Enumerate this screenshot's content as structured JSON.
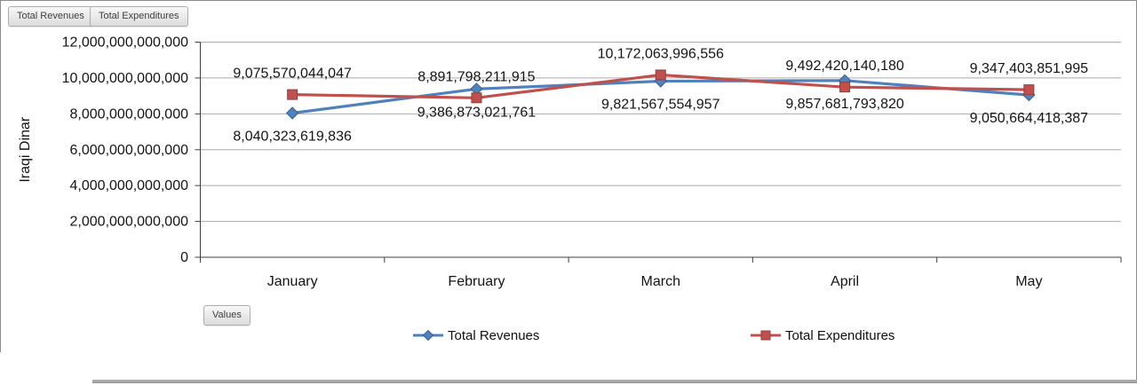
{
  "field_buttons": [
    {
      "label": "Total Revenues"
    },
    {
      "label": "Total Expenditures"
    }
  ],
  "values_button": {
    "label": "Values"
  },
  "chart_data": {
    "type": "line",
    "title": "",
    "xlabel": "",
    "ylabel": "Iraqi Dinar",
    "categories": [
      "January",
      "February",
      "March",
      "April",
      "May"
    ],
    "y_axis": {
      "min": 0,
      "max": 12000000000000,
      "step": 2000000000000,
      "ticks": [
        {
          "value": 0,
          "label": "0"
        },
        {
          "value": 2000000000000,
          "label": "2,000,000,000,000"
        },
        {
          "value": 4000000000000,
          "label": "4,000,000,000,000"
        },
        {
          "value": 6000000000000,
          "label": "6,000,000,000,000"
        },
        {
          "value": 8000000000000,
          "label": "8,000,000,000,000"
        },
        {
          "value": 10000000000000,
          "label": "10,000,000,000,000"
        },
        {
          "value": 12000000000000,
          "label": "12,000,000,000,000"
        }
      ]
    },
    "grid": true,
    "legend_position": "bottom",
    "gridline_color": "#ababab",
    "axis_color": "#404040",
    "label_color": "#141414",
    "series": [
      {
        "name": "Total Revenues",
        "color": "#4F81BD",
        "marker": "diamond",
        "marker_border": "#36618f",
        "label_position": "below",
        "values": [
          8040323619836,
          9386873021761,
          9821567554957,
          9857681793820,
          9050664418387
        ],
        "data_labels": [
          "8,040,323,619,836",
          "9,386,873,021,761",
          "9,821,567,554,957",
          "9,857,681,793,820",
          "9,050,664,418,387"
        ]
      },
      {
        "name": "Total Expenditures",
        "color": "#C0504D",
        "marker": "square",
        "marker_border": "#943c3a",
        "label_position": "above",
        "values": [
          9075570044047,
          8891798211915,
          10172063996556,
          9492420140180,
          9347403851995
        ],
        "data_labels": [
          "9,075,570,044,047",
          "8,891,798,211,915",
          "10,172,063,996,556",
          "9,492,420,140,180",
          "9,347,403,851,995"
        ]
      }
    ]
  }
}
